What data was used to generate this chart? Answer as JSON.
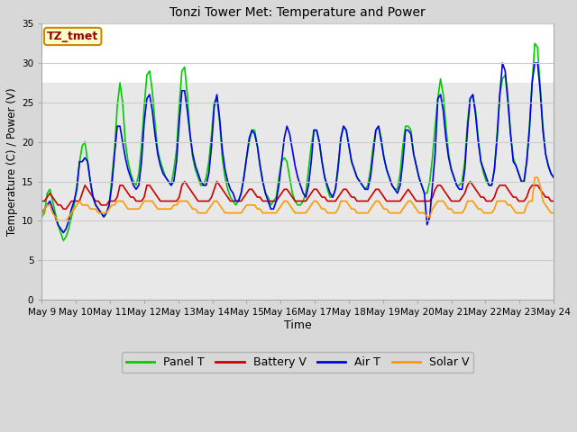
{
  "title": "Tonzi Tower Met: Temperature and Power",
  "xlabel": "Time",
  "ylabel": "Temperature (C) / Power (V)",
  "annotation": "TZ_tmet",
  "ylim": [
    0,
    35
  ],
  "yticks": [
    0,
    5,
    10,
    15,
    20,
    25,
    30,
    35
  ],
  "x_labels": [
    "May 9",
    "May 10",
    "May 11",
    "May 12",
    "May 13",
    "May 14",
    "May 15",
    "May 16",
    "May 17",
    "May 18",
    "May 19",
    "May 20",
    "May 21",
    "May 22",
    "May 23",
    "May 24"
  ],
  "fig_bg_color": "#d8d8d8",
  "plot_bg_color": "#ffffff",
  "grid_color": "#cccccc",
  "panel_t_color": "#00cc00",
  "battery_v_color": "#cc0000",
  "air_t_color": "#0000ee",
  "solar_v_color": "#ff9900",
  "line_width": 1.2,
  "panel_t": [
    10.5,
    11.0,
    13.5,
    14.0,
    12.5,
    11.0,
    9.5,
    8.5,
    7.5,
    8.0,
    9.0,
    10.5,
    12.0,
    14.5,
    17.5,
    19.5,
    20.0,
    17.5,
    15.0,
    13.0,
    12.0,
    11.5,
    11.0,
    10.5,
    11.0,
    12.0,
    15.5,
    19.0,
    24.5,
    27.5,
    25.0,
    20.0,
    17.5,
    16.0,
    15.0,
    14.5,
    16.0,
    19.5,
    24.5,
    28.5,
    29.0,
    26.5,
    22.5,
    19.0,
    17.5,
    16.5,
    15.5,
    15.0,
    14.5,
    16.5,
    19.0,
    24.5,
    29.0,
    29.5,
    26.0,
    21.0,
    18.0,
    16.5,
    15.5,
    14.5,
    14.5,
    15.5,
    17.5,
    21.0,
    25.0,
    25.5,
    22.5,
    18.0,
    15.5,
    14.0,
    13.0,
    12.5,
    12.0,
    12.5,
    13.5,
    15.5,
    18.0,
    20.0,
    21.5,
    21.5,
    19.5,
    17.0,
    15.0,
    13.5,
    13.0,
    12.0,
    12.5,
    13.0,
    15.5,
    17.5,
    18.0,
    17.5,
    15.5,
    13.5,
    12.5,
    12.0,
    12.0,
    12.5,
    13.5,
    16.5,
    19.5,
    21.5,
    21.5,
    20.0,
    17.5,
    15.5,
    14.0,
    13.0,
    13.0,
    14.0,
    16.5,
    20.5,
    22.0,
    21.5,
    19.5,
    17.5,
    16.5,
    15.5,
    15.0,
    14.5,
    14.0,
    14.5,
    16.5,
    19.5,
    21.5,
    22.0,
    20.5,
    18.0,
    16.5,
    15.5,
    14.5,
    14.0,
    14.0,
    16.0,
    19.5,
    22.0,
    22.0,
    21.5,
    18.5,
    17.0,
    15.5,
    14.5,
    13.5,
    13.5,
    15.0,
    18.0,
    22.0,
    25.5,
    28.0,
    26.0,
    22.0,
    18.5,
    16.5,
    15.5,
    14.5,
    14.5,
    15.0,
    17.5,
    22.5,
    25.5,
    26.0,
    24.0,
    20.5,
    17.5,
    16.0,
    15.0,
    14.5,
    14.5,
    16.5,
    21.0,
    26.0,
    28.0,
    28.5,
    25.0,
    21.0,
    18.0,
    17.0,
    16.0,
    15.0,
    15.0,
    17.5,
    22.0,
    27.5,
    32.5,
    32.0,
    27.0,
    22.0,
    18.5,
    17.0,
    16.0,
    15.5
  ],
  "battery_v": [
    12.5,
    12.5,
    13.0,
    13.5,
    13.0,
    12.5,
    12.0,
    12.0,
    11.5,
    11.5,
    12.0,
    12.5,
    12.5,
    12.5,
    12.5,
    13.5,
    14.5,
    14.0,
    13.5,
    13.0,
    12.5,
    12.5,
    12.0,
    12.0,
    12.0,
    12.5,
    12.5,
    12.5,
    13.0,
    14.5,
    14.5,
    14.0,
    13.5,
    13.0,
    13.0,
    12.5,
    12.5,
    12.5,
    13.0,
    14.5,
    14.5,
    14.0,
    13.5,
    13.0,
    12.5,
    12.5,
    12.5,
    12.5,
    12.5,
    12.5,
    12.5,
    13.0,
    14.5,
    15.0,
    14.5,
    14.0,
    13.5,
    13.0,
    12.5,
    12.5,
    12.5,
    12.5,
    12.5,
    13.0,
    14.0,
    15.0,
    14.5,
    14.0,
    13.5,
    13.0,
    12.5,
    12.5,
    12.5,
    12.5,
    12.5,
    13.0,
    13.5,
    14.0,
    14.0,
    13.5,
    13.0,
    13.0,
    12.5,
    12.5,
    12.5,
    12.5,
    12.5,
    12.5,
    13.0,
    13.5,
    14.0,
    14.0,
    13.5,
    13.0,
    12.5,
    12.5,
    12.5,
    12.5,
    12.5,
    13.0,
    13.5,
    14.0,
    14.0,
    13.5,
    13.0,
    13.0,
    12.5,
    12.5,
    12.5,
    12.5,
    13.0,
    13.5,
    14.0,
    14.0,
    13.5,
    13.0,
    13.0,
    12.5,
    12.5,
    12.5,
    12.5,
    12.5,
    13.0,
    13.5,
    14.0,
    14.0,
    13.5,
    13.0,
    12.5,
    12.5,
    12.5,
    12.5,
    12.5,
    12.5,
    13.0,
    13.5,
    14.0,
    13.5,
    13.0,
    12.5,
    12.5,
    12.5,
    12.5,
    12.5,
    12.5,
    13.0,
    14.0,
    14.5,
    14.5,
    14.0,
    13.5,
    13.0,
    12.5,
    12.5,
    12.5,
    12.5,
    13.0,
    13.5,
    14.5,
    15.0,
    14.5,
    14.0,
    13.5,
    13.0,
    13.0,
    12.5,
    12.5,
    12.5,
    13.0,
    14.0,
    14.5,
    14.5,
    14.5,
    14.0,
    13.5,
    13.0,
    13.0,
    12.5,
    12.5,
    12.5,
    13.0,
    14.0,
    14.5,
    14.5,
    14.5,
    14.0,
    13.5,
    13.0,
    13.0,
    12.5,
    12.5
  ],
  "air_t": [
    11.0,
    11.5,
    12.0,
    12.5,
    11.5,
    10.5,
    9.5,
    9.0,
    8.5,
    9.0,
    10.0,
    11.5,
    12.5,
    14.0,
    17.5,
    17.5,
    18.0,
    17.5,
    15.0,
    13.0,
    12.0,
    11.5,
    11.0,
    10.5,
    11.0,
    12.0,
    14.5,
    18.5,
    22.0,
    22.0,
    20.0,
    18.0,
    16.5,
    15.5,
    14.5,
    14.0,
    14.5,
    17.5,
    22.5,
    25.5,
    26.0,
    24.0,
    21.0,
    18.5,
    17.0,
    16.0,
    15.5,
    15.0,
    14.5,
    15.0,
    17.5,
    22.5,
    26.5,
    26.5,
    24.0,
    21.0,
    18.5,
    17.0,
    16.0,
    15.0,
    14.5,
    14.5,
    16.0,
    19.5,
    24.5,
    26.0,
    23.0,
    19.0,
    16.5,
    15.0,
    14.0,
    13.5,
    12.5,
    12.5,
    13.5,
    15.5,
    18.0,
    20.5,
    21.5,
    21.0,
    19.5,
    17.0,
    15.0,
    13.5,
    12.5,
    11.5,
    11.5,
    12.5,
    14.5,
    17.5,
    20.5,
    22.0,
    21.0,
    19.0,
    17.0,
    15.5,
    14.5,
    13.5,
    13.0,
    14.5,
    17.5,
    21.5,
    21.5,
    20.0,
    17.5,
    15.5,
    14.5,
    13.5,
    13.0,
    14.0,
    17.0,
    20.5,
    22.0,
    21.5,
    19.5,
    17.5,
    16.5,
    15.5,
    15.0,
    14.5,
    14.0,
    14.0,
    15.5,
    18.5,
    21.5,
    22.0,
    20.0,
    18.0,
    16.5,
    15.5,
    14.5,
    14.0,
    13.5,
    14.5,
    17.5,
    21.5,
    21.5,
    21.0,
    18.5,
    17.0,
    15.5,
    14.5,
    13.5,
    9.5,
    10.5,
    14.5,
    18.5,
    25.5,
    26.0,
    24.0,
    20.5,
    18.0,
    16.5,
    15.5,
    14.5,
    14.0,
    14.0,
    16.5,
    21.5,
    25.5,
    26.0,
    23.5,
    20.0,
    17.5,
    16.5,
    15.5,
    14.5,
    14.5,
    16.5,
    20.5,
    26.0,
    30.0,
    29.0,
    25.5,
    21.0,
    17.5,
    17.0,
    16.0,
    15.0,
    15.0,
    17.5,
    21.5,
    27.5,
    30.0,
    30.0,
    26.5,
    21.5,
    18.5,
    17.0,
    16.0,
    15.5
  ],
  "solar_v": [
    10.5,
    11.5,
    12.0,
    12.0,
    11.0,
    10.5,
    10.0,
    10.0,
    10.0,
    10.0,
    10.5,
    11.0,
    11.5,
    12.0,
    12.5,
    12.0,
    12.0,
    12.0,
    11.5,
    11.5,
    11.5,
    11.0,
    11.0,
    11.0,
    11.0,
    11.5,
    12.0,
    12.0,
    12.5,
    12.5,
    12.5,
    12.0,
    11.5,
    11.5,
    11.5,
    11.5,
    11.5,
    12.0,
    12.5,
    12.5,
    12.5,
    12.5,
    12.0,
    11.5,
    11.5,
    11.5,
    11.5,
    11.5,
    11.5,
    12.0,
    12.0,
    12.5,
    12.5,
    12.5,
    12.5,
    12.0,
    11.5,
    11.5,
    11.0,
    11.0,
    11.0,
    11.0,
    11.5,
    12.0,
    12.5,
    12.5,
    12.0,
    11.5,
    11.0,
    11.0,
    11.0,
    11.0,
    11.0,
    11.0,
    11.0,
    11.5,
    12.0,
    12.0,
    12.0,
    12.0,
    11.5,
    11.5,
    11.0,
    11.0,
    11.0,
    11.0,
    11.0,
    11.0,
    11.5,
    12.0,
    12.5,
    12.5,
    12.0,
    11.5,
    11.0,
    11.0,
    11.0,
    11.0,
    11.0,
    11.5,
    12.0,
    12.5,
    12.5,
    12.0,
    11.5,
    11.5,
    11.0,
    11.0,
    11.0,
    11.0,
    11.5,
    12.5,
    12.5,
    12.5,
    12.0,
    11.5,
    11.5,
    11.0,
    11.0,
    11.0,
    11.0,
    11.0,
    11.5,
    12.0,
    12.5,
    12.5,
    12.0,
    11.5,
    11.5,
    11.0,
    11.0,
    11.0,
    11.0,
    11.0,
    11.5,
    12.0,
    12.5,
    12.5,
    12.0,
    11.5,
    11.0,
    11.0,
    11.0,
    10.5,
    10.5,
    11.5,
    12.0,
    12.5,
    12.5,
    12.5,
    12.0,
    11.5,
    11.5,
    11.0,
    11.0,
    11.0,
    11.0,
    11.5,
    12.5,
    12.5,
    12.5,
    12.0,
    11.5,
    11.5,
    11.0,
    11.0,
    11.0,
    11.0,
    11.5,
    12.5,
    12.5,
    12.5,
    12.5,
    12.0,
    12.0,
    11.5,
    11.0,
    11.0,
    11.0,
    11.0,
    12.0,
    12.5,
    12.5,
    15.5,
    15.5,
    14.5,
    12.5,
    12.0,
    11.5,
    11.0,
    11.0
  ]
}
